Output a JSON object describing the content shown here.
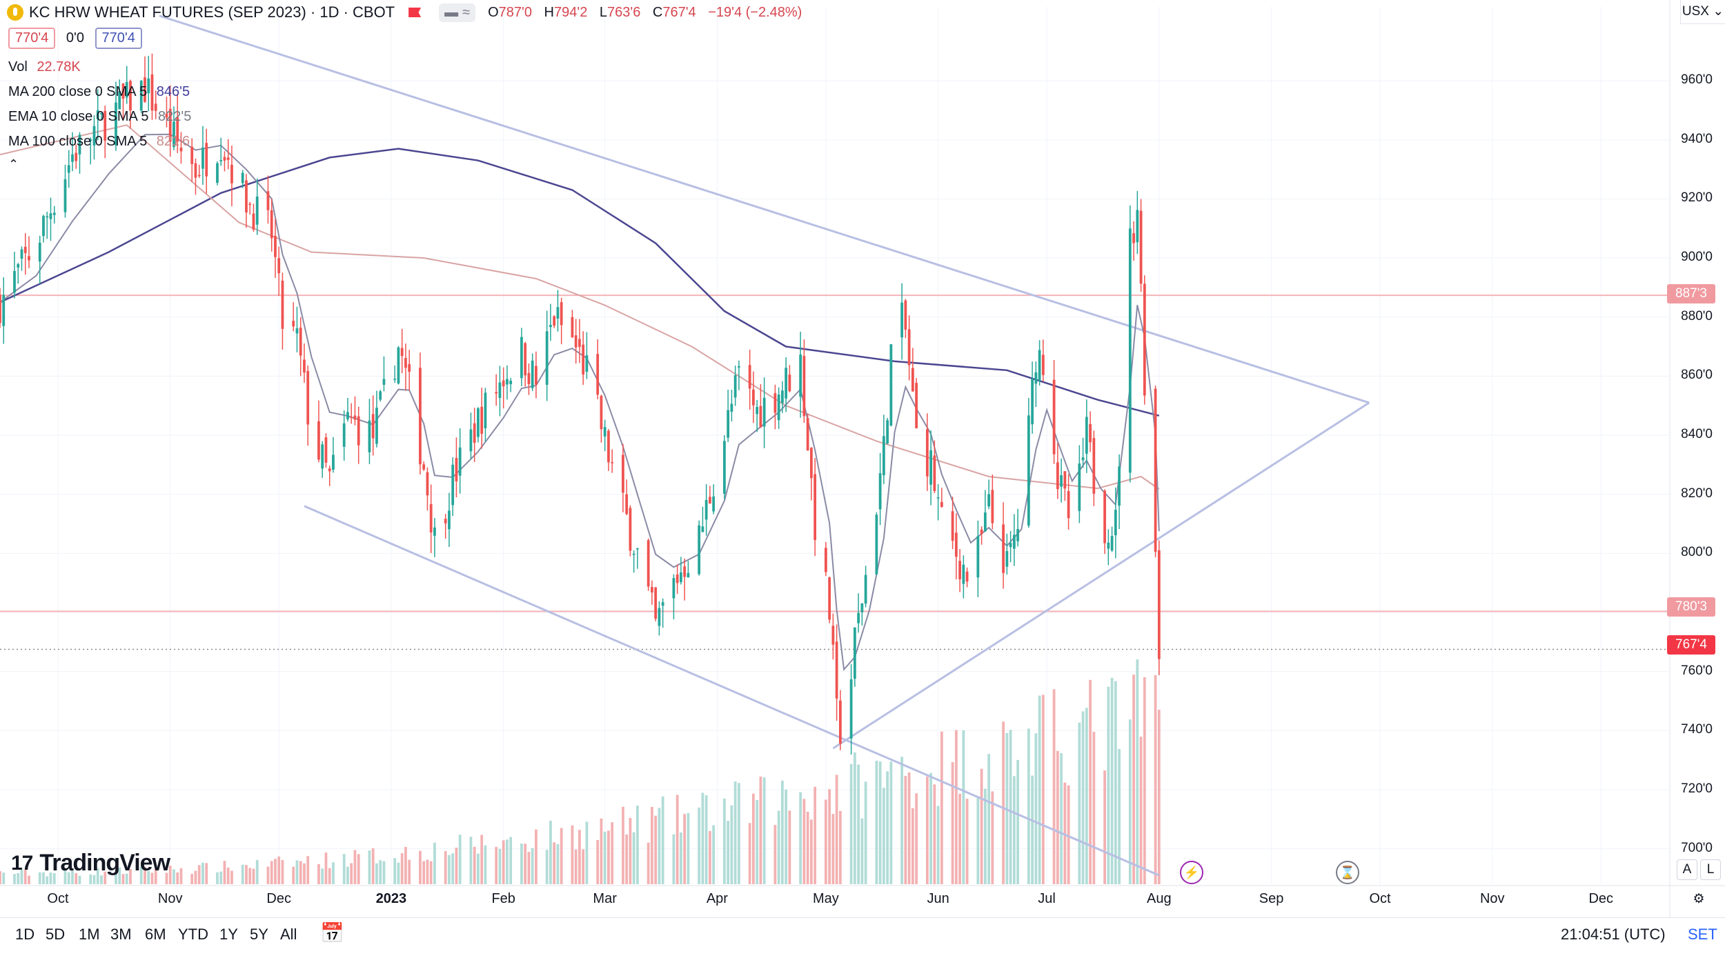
{
  "header": {
    "title": "KC HRW WHEAT FUTURES (SEP 2023) · 1D · CBOT",
    "ohlc": {
      "o_label": "O",
      "o": "787'0",
      "h_label": "H",
      "h": "794'2",
      "l_label": "L",
      "l": "763'6",
      "c_label": "C",
      "c": "767'4",
      "change": "−19'4 (−2.48%)"
    },
    "bid": "770'4",
    "spread": "0'0",
    "ask": "770'4",
    "currency": "USX"
  },
  "indicators": [
    {
      "label": "Vol",
      "value": "22.78K",
      "color": "#d6454f"
    },
    {
      "label": "MA 200 close 0 SMA 5",
      "value": "846'5",
      "color": "#3f3c9c"
    },
    {
      "label": "EMA 10 close 0 SMA 5",
      "value": "822'5",
      "color": "#787b86"
    },
    {
      "label": "MA 100 close 0 SMA 5",
      "value": "821'6",
      "color": "#c98b8b"
    }
  ],
  "price_tags": [
    {
      "value": "887'3",
      "color": "#f09aa0"
    },
    {
      "value": "780'3",
      "color": "#f09aa0"
    },
    {
      "value": "767'4",
      "color": "#f23645"
    }
  ],
  "ranges": [
    "1D",
    "5D",
    "1M",
    "3M",
    "6M",
    "YTD",
    "1Y",
    "5Y",
    "All"
  ],
  "clock": "21:04:51 (UTC)",
  "session": "SET",
  "logo": "TradingView",
  "axis_buttons": [
    "A",
    "L"
  ],
  "chart_data": {
    "type": "candlestick",
    "title": "KC HRW WHEAT FUTURES (SEP 2023)",
    "y_ticks": [
      "960'0",
      "940'0",
      "920'0",
      "900'0",
      "880'0",
      "860'0",
      "840'0",
      "820'0",
      "800'0",
      "780'0",
      "760'0",
      "740'0",
      "720'0",
      "700'0"
    ],
    "ylim": [
      688,
      985
    ],
    "x_ticks": [
      "Oct",
      "Nov",
      "Dec",
      "2023",
      "Feb",
      "Mar",
      "Apr",
      "May",
      "Jun",
      "Jul",
      "Aug",
      "Sep",
      "Oct",
      "Nov",
      "Dec"
    ],
    "x_tick_dates": [
      "2022-10-01",
      "2022-11-01",
      "2022-12-01",
      "2023-01-01",
      "2023-02-01",
      "2023-03-01",
      "2023-04-01",
      "2023-05-01",
      "2023-06-01",
      "2023-07-01",
      "2023-08-01",
      "2023-09-01",
      "2023-10-01",
      "2023-11-01",
      "2023-12-01"
    ],
    "xlim": [
      "2022-09-15",
      "2023-12-20"
    ],
    "horizontal_lines": [
      887.375,
      780.375
    ],
    "last_price": 767.5,
    "trend_lines": [
      {
        "from": [
          "2022-10-29",
          982
        ],
        "to": [
          "2023-09-28",
          851
        ]
      },
      {
        "from": [
          "2022-12-08",
          816
        ],
        "to": [
          "2023-08-01",
          691
        ]
      },
      {
        "from": [
          "2023-05-03",
          734
        ],
        "to": [
          "2023-09-28",
          851
        ]
      }
    ],
    "close_path": [
      [
        "2022-09-15",
        885
      ],
      [
        "2022-09-25",
        905
      ],
      [
        "2022-10-05",
        935
      ],
      [
        "2022-10-15",
        948
      ],
      [
        "2022-10-25",
        958
      ],
      [
        "2022-11-01",
        942
      ],
      [
        "2022-11-08",
        930
      ],
      [
        "2022-11-15",
        940
      ],
      [
        "2022-11-22",
        920
      ],
      [
        "2022-11-29",
        908
      ],
      [
        "2022-12-02",
        878
      ],
      [
        "2022-12-06",
        872
      ],
      [
        "2022-12-10",
        840
      ],
      [
        "2022-12-15",
        825
      ],
      [
        "2022-12-20",
        845
      ],
      [
        "2022-12-27",
        840
      ],
      [
        "2023-01-03",
        870
      ],
      [
        "2023-01-06",
        855
      ],
      [
        "2023-01-10",
        830
      ],
      [
        "2023-01-13",
        805
      ],
      [
        "2023-01-18",
        825
      ],
      [
        "2023-01-25",
        845
      ],
      [
        "2023-02-01",
        860
      ],
      [
        "2023-02-06",
        868
      ],
      [
        "2023-02-10",
        858
      ],
      [
        "2023-02-15",
        880
      ],
      [
        "2023-02-20",
        872
      ],
      [
        "2023-02-24",
        862
      ],
      [
        "2023-03-01",
        838
      ],
      [
        "2023-03-06",
        815
      ],
      [
        "2023-03-10",
        800
      ],
      [
        "2023-03-15",
        775
      ],
      [
        "2023-03-20",
        790
      ],
      [
        "2023-03-27",
        805
      ],
      [
        "2023-04-03",
        840
      ],
      [
        "2023-04-07",
        860
      ],
      [
        "2023-04-12",
        848
      ],
      [
        "2023-04-18",
        855
      ],
      [
        "2023-04-24",
        865
      ],
      [
        "2023-04-28",
        810
      ],
      [
        "2023-05-02",
        780
      ],
      [
        "2023-05-04",
        745
      ],
      [
        "2023-05-06",
        736
      ],
      [
        "2023-05-09",
        770
      ],
      [
        "2023-05-13",
        800
      ],
      [
        "2023-05-17",
        835
      ],
      [
        "2023-05-20",
        885
      ],
      [
        "2023-05-23",
        875
      ],
      [
        "2023-05-26",
        840
      ],
      [
        "2023-05-30",
        830
      ],
      [
        "2023-06-02",
        810
      ],
      [
        "2023-06-06",
        800
      ],
      [
        "2023-06-10",
        790
      ],
      [
        "2023-06-15",
        815
      ],
      [
        "2023-06-20",
        795
      ],
      [
        "2023-06-24",
        815
      ],
      [
        "2023-06-28",
        868
      ],
      [
        "2023-07-01",
        865
      ],
      [
        "2023-07-04",
        825
      ],
      [
        "2023-07-08",
        808
      ],
      [
        "2023-07-12",
        840
      ],
      [
        "2023-07-16",
        810
      ],
      [
        "2023-07-20",
        810
      ],
      [
        "2023-07-24",
        905
      ],
      [
        "2023-07-26",
        918
      ],
      [
        "2023-07-28",
        860
      ],
      [
        "2023-07-31",
        800
      ],
      [
        "2023-08-01",
        767.5
      ]
    ],
    "ma200_path": [
      [
        "2022-09-15",
        885
      ],
      [
        "2022-10-15",
        902
      ],
      [
        "2022-11-15",
        922
      ],
      [
        "2022-12-15",
        934
      ],
      [
        "2023-01-03",
        937
      ],
      [
        "2023-01-25",
        933
      ],
      [
        "2023-02-20",
        923
      ],
      [
        "2023-03-15",
        905
      ],
      [
        "2023-04-03",
        882
      ],
      [
        "2023-04-20",
        870
      ],
      [
        "2023-05-20",
        865
      ],
      [
        "2023-06-20",
        862
      ],
      [
        "2023-07-15",
        852
      ],
      [
        "2023-08-01",
        846.6
      ]
    ],
    "ma100_path": [
      [
        "2022-09-15",
        935
      ],
      [
        "2022-10-20",
        945
      ],
      [
        "2022-11-20",
        912
      ],
      [
        "2022-12-10",
        902
      ],
      [
        "2023-01-10",
        900
      ],
      [
        "2023-02-10",
        893
      ],
      [
        "2023-03-01",
        884
      ],
      [
        "2023-03-25",
        870
      ],
      [
        "2023-04-20",
        850
      ],
      [
        "2023-05-15",
        838
      ],
      [
        "2023-06-15",
        826
      ],
      [
        "2023-07-15",
        822
      ],
      [
        "2023-07-27",
        826
      ],
      [
        "2023-08-01",
        821.8
      ]
    ],
    "volume_max": 92
  }
}
